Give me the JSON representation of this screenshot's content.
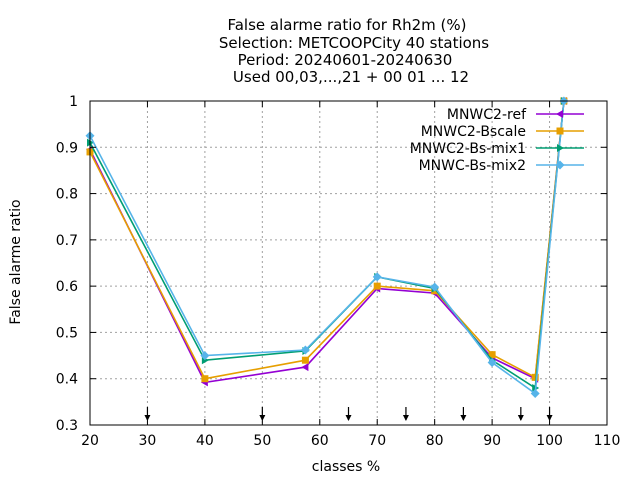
{
  "chart_data": {
    "type": "line",
    "title_lines": [
      "False alarme ratio  for Rh2m (%)",
      "Selection: METCOOPCity     40 stations",
      "Period: 20240601-20240630",
      "Used 00,03,...,21 + 00 01 ... 12"
    ],
    "xlabel": "classes %",
    "ylabel": "False alarme ratio",
    "xlim": [
      20,
      110
    ],
    "ylim": [
      0.3,
      1.0
    ],
    "xticks": [
      20,
      30,
      40,
      50,
      60,
      70,
      80,
      90,
      100,
      110
    ],
    "yticks": [
      0.3,
      0.4,
      0.5,
      0.6,
      0.7,
      0.8,
      0.9,
      1.0
    ],
    "ytick_labels": [
      "0.3",
      "0.4",
      "0.5",
      "0.6",
      "0.7",
      "0.8",
      "0.9",
      "1"
    ],
    "grid": true,
    "legend_position": "top-right",
    "arrow_markers_x": [
      30,
      50,
      65,
      75,
      85,
      95,
      100
    ],
    "series": [
      {
        "name": "MNWC2-ref",
        "color": "#9400d3",
        "x": [
          20,
          40,
          57.5,
          70,
          80,
          90,
          97.5,
          102.5
        ],
        "y": [
          0.895,
          0.392,
          0.425,
          0.595,
          0.585,
          0.445,
          0.4,
          1.0
        ]
      },
      {
        "name": "MNWC2-Bscale",
        "color": "#e69f00",
        "x": [
          20,
          40,
          57.5,
          70,
          80,
          90,
          97.5,
          102.5
        ],
        "y": [
          0.89,
          0.4,
          0.44,
          0.6,
          0.59,
          0.452,
          0.403,
          1.0
        ]
      },
      {
        "name": "MNWC2-Bs-mix1",
        "color": "#009e73",
        "x": [
          20,
          40,
          57.5,
          70,
          80,
          90,
          97.5,
          102.5
        ],
        "y": [
          0.91,
          0.44,
          0.46,
          0.62,
          0.595,
          0.44,
          0.38,
          1.0
        ]
      },
      {
        "name": "MNWC-Bs-mix2",
        "color": "#56b4e9",
        "x": [
          20,
          40,
          57.5,
          70,
          80,
          90,
          97.5,
          102.5
        ],
        "y": [
          0.925,
          0.45,
          0.462,
          0.62,
          0.598,
          0.435,
          0.368,
          1.0
        ]
      }
    ]
  }
}
